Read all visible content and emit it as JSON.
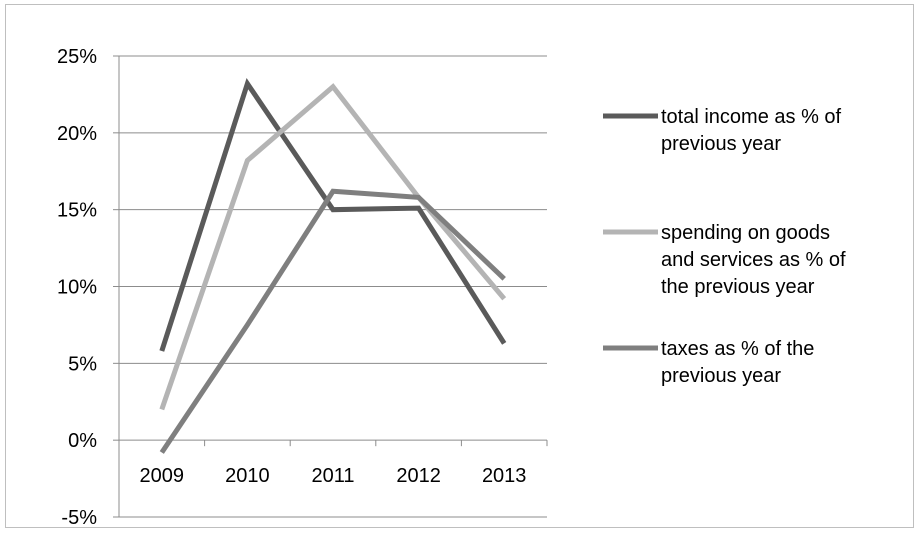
{
  "chart_data": {
    "type": "line",
    "categories": [
      "2009",
      "2010",
      "2011",
      "2012",
      "2013"
    ],
    "y_ticks": [
      "25%",
      "20%",
      "15%",
      "10%",
      "5%",
      "0%",
      "-5%"
    ],
    "y_tick_values": [
      25,
      20,
      15,
      10,
      5,
      0,
      -5
    ],
    "ylim": [
      -5,
      25
    ],
    "grid": true,
    "legend_position": "right",
    "series": [
      {
        "name": "total income as % of previous year",
        "legend_lines": [
          "total income as % of",
          "previous year"
        ],
        "values": [
          5.8,
          23.2,
          15.0,
          15.1,
          6.3
        ],
        "color": "#5a5a5a"
      },
      {
        "name": "spending on goods and services as % of the previous year",
        "legend_lines": [
          "spending on goods",
          "and services as % of",
          "the previous year"
        ],
        "values": [
          2.0,
          18.2,
          23.0,
          15.8,
          9.2
        ],
        "color": "#b4b4b4"
      },
      {
        "name": "taxes as % of the previous year",
        "legend_lines": [
          "taxes as % of the",
          "previous year"
        ],
        "values": [
          -0.8,
          7.5,
          16.2,
          15.8,
          10.5
        ],
        "color": "#7f7f7f"
      }
    ]
  }
}
